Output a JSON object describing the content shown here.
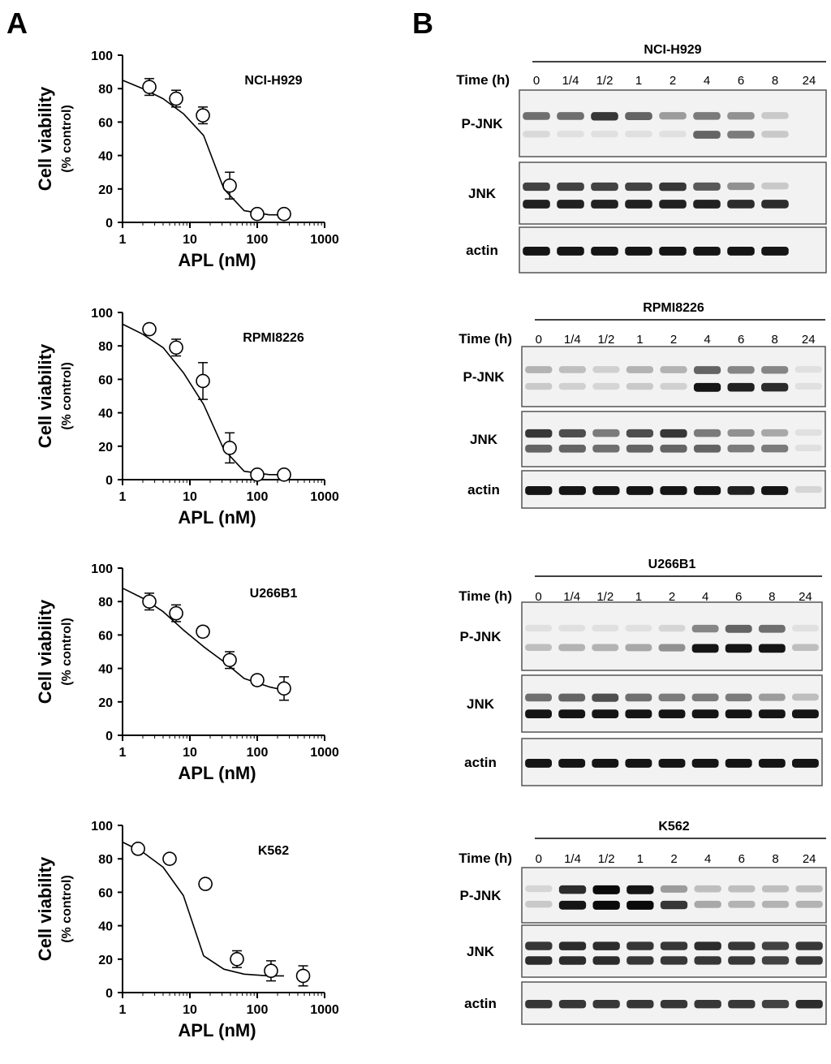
{
  "panel_labels": {
    "a": "A",
    "b": "B"
  },
  "chart_data": [
    {
      "type": "scatter",
      "title": "NCI-H929",
      "xlabel": "APL (nM)",
      "ylabel": "Cell viability",
      "ylabel2": "(% control)",
      "xscale": "log",
      "xlim": [
        1,
        1000
      ],
      "ylim": [
        0,
        100
      ],
      "xticks": [
        "1",
        "10",
        "100",
        "1000"
      ],
      "yticks": [
        "0",
        "20",
        "40",
        "60",
        "80",
        "100"
      ],
      "x": [
        2.5,
        6.25,
        15.6,
        39,
        100,
        250
      ],
      "y": [
        81,
        74,
        64,
        22,
        5,
        5
      ],
      "err": [
        5,
        5,
        5,
        8,
        2,
        2
      ],
      "curve_y": [
        85,
        80,
        74,
        65,
        52,
        20,
        7,
        4.5,
        4.5
      ]
    },
    {
      "type": "scatter",
      "title": "RPMI8226",
      "xlabel": "APL (nM)",
      "ylabel": "Cell viability",
      "ylabel2": "(% control)",
      "xscale": "log",
      "xlim": [
        1,
        1000
      ],
      "ylim": [
        0,
        100
      ],
      "xticks": [
        "1",
        "10",
        "100",
        "1000"
      ],
      "yticks": [
        "0",
        "20",
        "40",
        "60",
        "80",
        "100"
      ],
      "x": [
        2.5,
        6.25,
        15.6,
        39,
        100,
        250
      ],
      "y": [
        90,
        79,
        59,
        19,
        3,
        3
      ],
      "err": [
        3,
        5,
        11,
        9,
        2,
        2
      ],
      "curve_y": [
        93,
        87,
        79,
        64,
        45,
        18,
        5,
        3,
        3
      ]
    },
    {
      "type": "scatter",
      "title": "U266B1",
      "xlabel": "APL (nM)",
      "ylabel": "Cell viability",
      "ylabel2": "(% control)",
      "xscale": "log",
      "xlim": [
        1,
        1000
      ],
      "ylim": [
        0,
        100
      ],
      "xticks": [
        "1",
        "10",
        "100",
        "1000"
      ],
      "yticks": [
        "0",
        "20",
        "40",
        "60",
        "80",
        "100"
      ],
      "x": [
        2.5,
        6.25,
        15.6,
        39,
        100,
        250
      ],
      "y": [
        80,
        73,
        62,
        45,
        33,
        28
      ],
      "err": [
        5,
        5,
        3,
        5,
        3,
        7
      ],
      "curve_y": [
        88,
        82,
        74,
        63,
        53,
        44,
        34,
        29,
        27
      ]
    },
    {
      "type": "scatter",
      "title": "K562",
      "xlabel": "APL (nM)",
      "ylabel": "Cell viability",
      "ylabel2": "(% control)",
      "xscale": "log",
      "xlim": [
        1,
        1000
      ],
      "ylim": [
        0,
        100
      ],
      "xticks": [
        "1",
        "10",
        "100",
        "1000"
      ],
      "yticks": [
        "0",
        "20",
        "40",
        "60",
        "80",
        "100"
      ],
      "x": [
        1.7,
        5,
        17,
        50,
        160,
        480
      ],
      "y": [
        86,
        80,
        65,
        20,
        13,
        10
      ],
      "err": [
        2,
        2,
        2,
        5,
        6,
        6
      ],
      "curve_y": [
        90,
        84,
        75,
        58,
        22,
        14,
        11,
        10,
        10
      ]
    }
  ],
  "blots": [
    {
      "cell_line": "NCI-H929",
      "time_label": "Time (h)",
      "lanes": [
        "0",
        "1/4",
        "1/2",
        "1",
        "2",
        "4",
        "6",
        "8",
        "24"
      ],
      "rows": [
        {
          "label": "P-JNK",
          "bands": [
            [
              0.55,
              0.55,
              0.8,
              0.6,
              0.35,
              0.5,
              0.4,
              0.15,
              0.0
            ],
            [
              0.08,
              0.05,
              0.05,
              0.05,
              0.05,
              0.6,
              0.5,
              0.15,
              0.0
            ]
          ]
        },
        {
          "label": "JNK",
          "bands": [
            [
              0.75,
              0.75,
              0.75,
              0.75,
              0.8,
              0.65,
              0.4,
              0.15,
              0.0
            ],
            [
              0.9,
              0.9,
              0.9,
              0.9,
              0.9,
              0.9,
              0.85,
              0.85,
              0.0
            ]
          ]
        },
        {
          "label": "actin",
          "bands": [
            [
              0.95,
              0.95,
              0.95,
              0.95,
              0.95,
              0.95,
              0.95,
              0.95,
              0.0
            ]
          ]
        }
      ]
    },
    {
      "cell_line": "RPMI8226",
      "time_label": "Time (h)",
      "lanes": [
        "0",
        "1/4",
        "1/2",
        "1",
        "2",
        "4",
        "6",
        "8",
        "24"
      ],
      "rows": [
        {
          "label": "P-JNK",
          "bands": [
            [
              0.25,
              0.2,
              0.12,
              0.25,
              0.25,
              0.6,
              0.45,
              0.45,
              0.05
            ],
            [
              0.15,
              0.12,
              0.1,
              0.15,
              0.12,
              0.95,
              0.9,
              0.85,
              0.05
            ]
          ]
        },
        {
          "label": "JNK",
          "bands": [
            [
              0.8,
              0.7,
              0.5,
              0.7,
              0.8,
              0.5,
              0.4,
              0.3,
              0.05
            ],
            [
              0.6,
              0.6,
              0.55,
              0.6,
              0.6,
              0.6,
              0.5,
              0.5,
              0.05
            ]
          ]
        },
        {
          "label": "actin",
          "bands": [
            [
              0.95,
              0.95,
              0.95,
              0.95,
              0.95,
              0.95,
              0.9,
              0.95,
              0.1
            ]
          ]
        }
      ]
    },
    {
      "cell_line": "U266B1",
      "time_label": "Time (h)",
      "lanes": [
        "0",
        "1/4",
        "1/2",
        "1",
        "2",
        "4",
        "6",
        "8",
        "24"
      ],
      "rows": [
        {
          "label": "P-JNK",
          "bands": [
            [
              0.05,
              0.05,
              0.05,
              0.05,
              0.1,
              0.45,
              0.6,
              0.55,
              0.05
            ],
            [
              0.2,
              0.25,
              0.25,
              0.3,
              0.4,
              0.95,
              0.95,
              0.95,
              0.2
            ]
          ]
        },
        {
          "label": "JNK",
          "bands": [
            [
              0.55,
              0.6,
              0.7,
              0.55,
              0.5,
              0.5,
              0.5,
              0.35,
              0.2
            ],
            [
              0.95,
              0.95,
              0.95,
              0.95,
              0.95,
              0.95,
              0.95,
              0.95,
              0.95
            ]
          ]
        },
        {
          "label": "actin",
          "bands": [
            [
              0.95,
              0.95,
              0.95,
              0.95,
              0.95,
              0.95,
              0.95,
              0.95,
              0.95
            ]
          ]
        }
      ]
    },
    {
      "cell_line": "K562",
      "time_label": "Time (h)",
      "lanes": [
        "0",
        "1/4",
        "1/2",
        "1",
        "2",
        "4",
        "6",
        "8",
        "24"
      ],
      "rows": [
        {
          "label": "P-JNK",
          "bands": [
            [
              0.1,
              0.85,
              1.0,
              0.95,
              0.35,
              0.2,
              0.2,
              0.2,
              0.2
            ],
            [
              0.15,
              0.95,
              1.0,
              1.0,
              0.8,
              0.3,
              0.25,
              0.25,
              0.25
            ]
          ]
        },
        {
          "label": "JNK",
          "bands": [
            [
              0.8,
              0.85,
              0.85,
              0.8,
              0.8,
              0.85,
              0.8,
              0.75,
              0.8
            ],
            [
              0.85,
              0.85,
              0.85,
              0.8,
              0.8,
              0.8,
              0.8,
              0.75,
              0.8
            ]
          ]
        },
        {
          "label": "actin",
          "bands": [
            [
              0.8,
              0.8,
              0.8,
              0.8,
              0.8,
              0.8,
              0.8,
              0.75,
              0.85
            ]
          ]
        }
      ]
    }
  ]
}
